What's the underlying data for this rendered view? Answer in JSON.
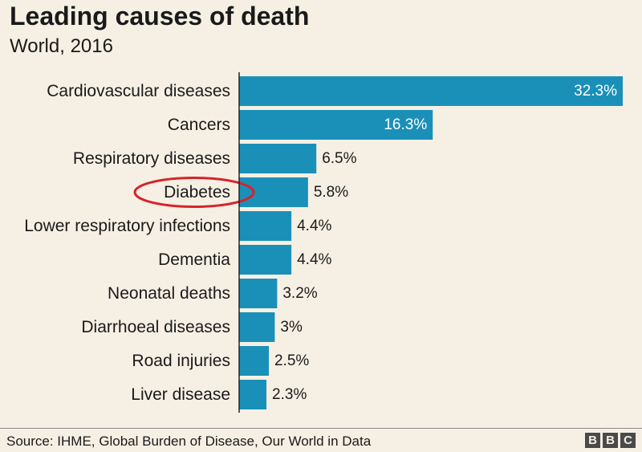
{
  "title": "Leading causes of death",
  "subtitle": "World, 2016",
  "source": "Source: IHME, Global Burden of Disease, Our World in Data",
  "logo": {
    "text": "BBC",
    "letters": [
      "B",
      "B",
      "C"
    ]
  },
  "highlight": "Diabetes",
  "colors": {
    "bar": "#1a90b9",
    "highlight_circle": "#d6232a",
    "background": "#f6f0e4",
    "inside_label": "#ffffff",
    "outside_label": "#1a1a1a"
  },
  "chart_data": {
    "type": "bar",
    "orientation": "horizontal",
    "title": "Leading causes of death",
    "subtitle": "World, 2016",
    "categories": [
      "Cardiovascular diseases",
      "Cancers",
      "Respiratory diseases",
      "Diabetes",
      "Lower respiratory infections",
      "Dementia",
      "Neonatal deaths",
      "Diarrhoeal diseases",
      "Road injuries",
      "Liver disease"
    ],
    "values": [
      32.3,
      16.3,
      6.5,
      5.8,
      4.4,
      4.4,
      3.2,
      3,
      2.5,
      2.3
    ],
    "value_labels": [
      "32.3%",
      "16.3%",
      "6.5%",
      "5.8%",
      "4.4%",
      "4.4%",
      "3.2%",
      "3%",
      "2.5%",
      "2.3%"
    ],
    "xlim": [
      0,
      32.3
    ],
    "grid": false,
    "legend": "none"
  }
}
